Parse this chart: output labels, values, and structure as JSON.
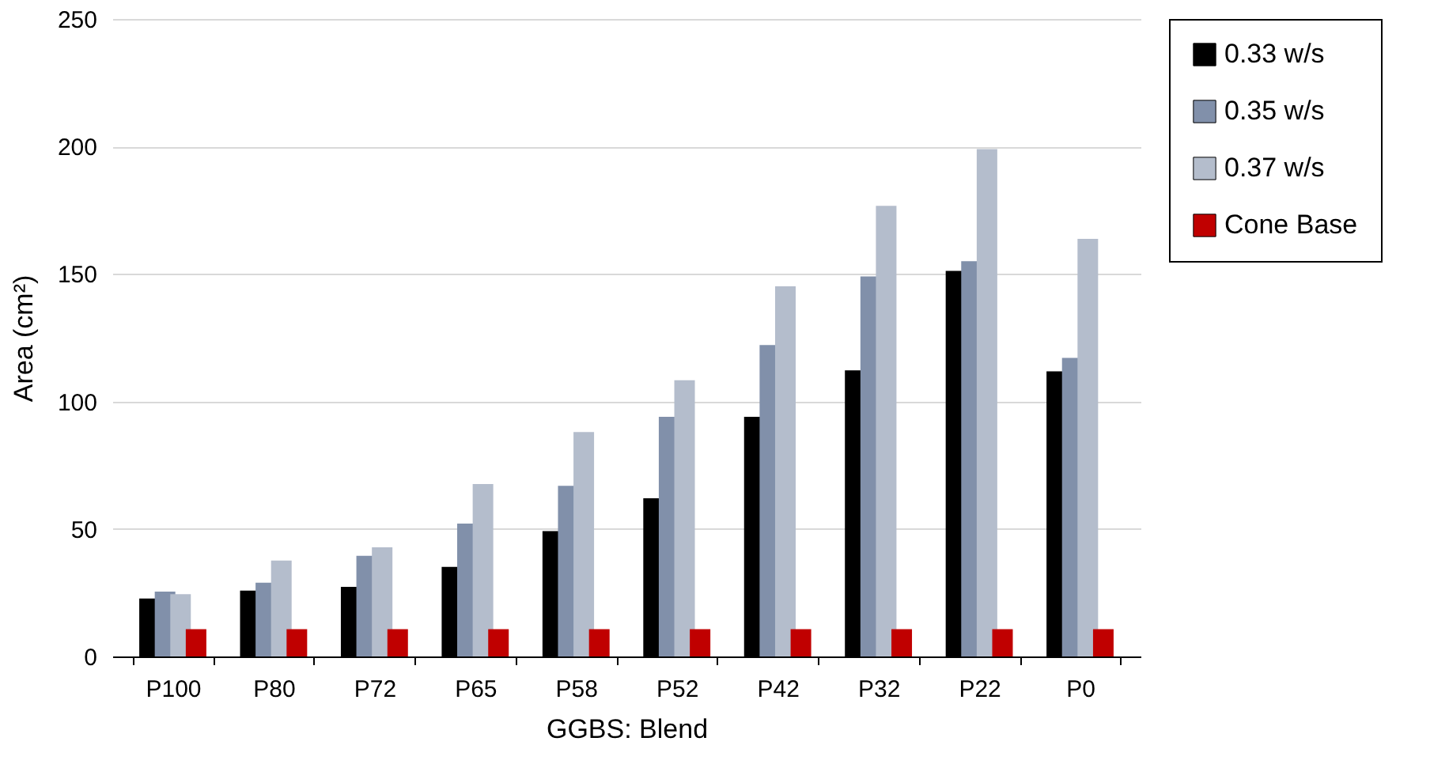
{
  "chart_data": {
    "type": "bar",
    "xlabel": "GGBS: Blend",
    "ylabel": "Area (cm²)",
    "categories": [
      "P100",
      "P80",
      "P72",
      "P65",
      "P58",
      "P52",
      "P42",
      "P32",
      "P22",
      "P0"
    ],
    "series": [
      {
        "name": "0.33 w/s",
        "color": "#000000",
        "values": [
          22.7,
          25.8,
          27.3,
          35.1,
          49.2,
          62.0,
          94.0,
          112.2,
          151.2,
          111.8
        ]
      },
      {
        "name": "0.35 w/s",
        "color": "#8190aa",
        "values": [
          25.4,
          28.9,
          39.5,
          52.1,
          66.9,
          94.0,
          122.1,
          149.0,
          155.0,
          117.1
        ]
      },
      {
        "name": "0.37 w/s",
        "color": "#b4bdcc",
        "values": [
          24.4,
          37.6,
          42.8,
          67.6,
          88.0,
          108.3,
          145.2,
          176.7,
          199.0,
          163.8
        ]
      },
      {
        "name": "Cone Base",
        "color": "#c00000",
        "values": [
          10.7,
          10.7,
          10.7,
          10.7,
          10.7,
          10.7,
          10.7,
          10.7,
          10.7,
          10.7
        ]
      }
    ],
    "ylim": [
      0,
      250
    ],
    "yticks": [
      0,
      50,
      100,
      150,
      200,
      250
    ],
    "grid": "y",
    "legend": "right"
  }
}
